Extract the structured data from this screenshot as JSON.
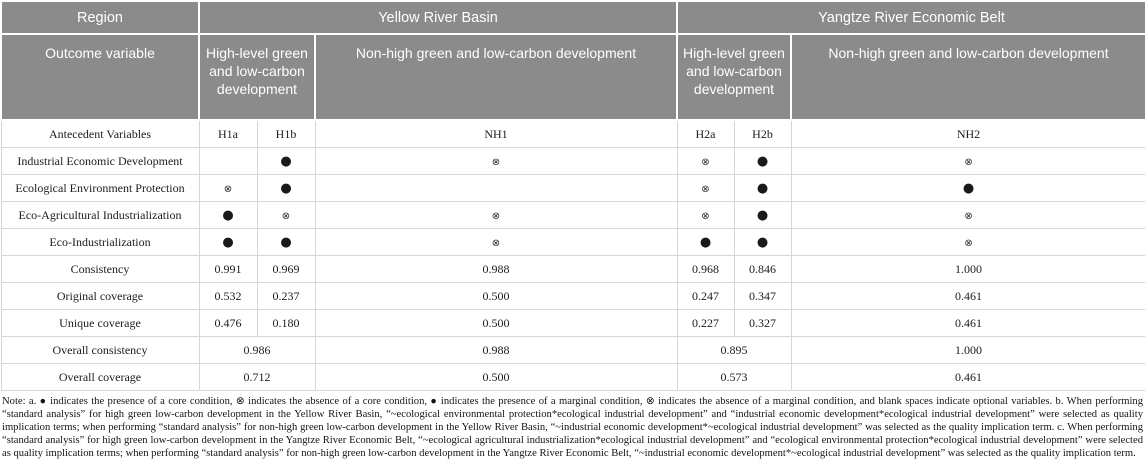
{
  "colors": {
    "header_bg": "#8b8b8b",
    "header_text": "#ffffff",
    "body_border": "#d6d6d6",
    "body_text": "#1c1c1c"
  },
  "symbols": {
    "dot": "●",
    "cross": "⊗",
    "blank": ""
  },
  "table": {
    "header_row1": {
      "region": "Region",
      "yellow": "Yellow River Basin",
      "yangtze": "Yangtze River Economic Belt"
    },
    "header_row2": {
      "outcome": "Outcome variable",
      "high_yellow": "High-level green and low-carbon development",
      "nonhigh_yellow": "Non-high green and low-carbon development",
      "high_yangtze": "High-level green and low-carbon development",
      "nonhigh_yangtze": "Non-high green and low-carbon development"
    },
    "antecedent_row": {
      "label": "Antecedent Variables",
      "columns": [
        "H1a",
        "H1b",
        "NH1",
        "H2a",
        "H2b",
        "NH2"
      ]
    },
    "condition_rows": [
      {
        "label": "Industrial Economic Development",
        "cells": [
          "blank",
          "dot",
          "cross",
          "cross",
          "dot",
          "cross"
        ]
      },
      {
        "label": "Ecological Environment Protection",
        "cells": [
          "cross",
          "dot",
          "blank",
          "cross",
          "dot",
          "dot"
        ]
      },
      {
        "label": "Eco-Agricultural Industrialization",
        "cells": [
          "dot",
          "cross",
          "cross",
          "cross",
          "dot",
          "cross"
        ]
      },
      {
        "label": "Eco-Industrialization",
        "cells": [
          "dot",
          "dot",
          "cross",
          "dot",
          "dot",
          "cross"
        ]
      }
    ],
    "stat_rows": [
      {
        "label": "Consistency",
        "cells": [
          "0.991",
          "0.969",
          "0.988",
          "0.968",
          "0.846",
          "1.000"
        ]
      },
      {
        "label": "Original coverage",
        "cells": [
          "0.532",
          "0.237",
          "0.500",
          "0.247",
          "0.347",
          "0.461"
        ]
      },
      {
        "label": "Unique coverage",
        "cells": [
          "0.476",
          "0.180",
          "0.500",
          "0.227",
          "0.327",
          "0.461"
        ]
      }
    ],
    "overall_rows": [
      {
        "label": "Overall consistency",
        "cells": [
          "0.986",
          "0.988",
          "0.895",
          "1.000"
        ]
      },
      {
        "label": "Overall coverage",
        "cells": [
          "0.712",
          "0.500",
          "0.573",
          "0.461"
        ]
      }
    ]
  },
  "note": {
    "text": "Note: a. ● indicates the presence of a core condition, ⊗ indicates the absence of a core condition, ● indicates the presence of a marginal condition, ⊗ indicates the absence of a marginal condition, and blank spaces indicate optional variables. b. When performing “standard analysis” for high green low-carbon development in the Yellow River Basin, “~ecological environmental protection*ecological industrial development” and “industrial economic development*ecological industrial development” were selected as quality implication terms; when performing “standard analysis” for non-high green low-carbon development in the Yellow River Basin, “~industrial economic development*~ecological industrial development” was selected as the quality implication term. c. When performing “standard analysis” for high green low-carbon development in the Yangtze River Economic Belt, “~ecological agricultural industrialization*ecological industrial development” and “ecological environmental protection*ecological industrial development” were selected as quality implication terms; when performing “standard analysis” for non-high green low-carbon development in the Yangtze River Economic Belt, “~industrial economic development*~ecological industrial development” was selected as the quality implication term."
  }
}
